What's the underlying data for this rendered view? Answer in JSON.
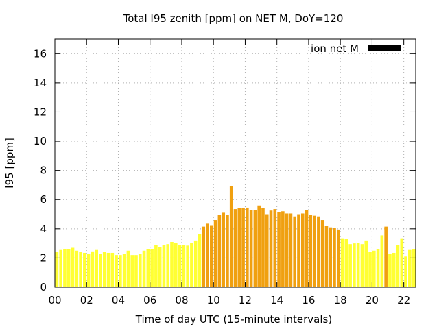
{
  "chart_data": {
    "type": "bar",
    "title": "Total I95 zenith [ppm] on NET M, DoY=120",
    "xlabel": "Time of day UTC (15-minute intervals)",
    "ylabel": "I95 [ppm]",
    "xlim": [
      0,
      22.75
    ],
    "ylim": [
      0,
      17
    ],
    "x_ticks": [
      "00",
      "02",
      "04",
      "06",
      "08",
      "10",
      "12",
      "14",
      "16",
      "18",
      "20",
      "22"
    ],
    "x_tick_values": [
      0,
      2,
      4,
      6,
      8,
      10,
      12,
      14,
      16,
      18,
      20,
      22
    ],
    "y_ticks": [
      0,
      2,
      4,
      6,
      8,
      10,
      12,
      14,
      16
    ],
    "grid": true,
    "legend_position": "top-right",
    "series": [
      {
        "name": "ion net M",
        "legend_color": "#000000",
        "bar_width_hours": 0.2,
        "x": [
          0.125,
          0.375,
          0.625,
          0.875,
          1.125,
          1.375,
          1.625,
          1.875,
          2.125,
          2.375,
          2.625,
          2.875,
          3.125,
          3.375,
          3.625,
          3.875,
          4.125,
          4.375,
          4.625,
          4.875,
          5.125,
          5.375,
          5.625,
          5.875,
          6.125,
          6.375,
          6.625,
          6.875,
          7.125,
          7.375,
          7.625,
          7.875,
          8.125,
          8.375,
          8.625,
          8.875,
          9.125,
          9.375,
          9.625,
          9.875,
          10.125,
          10.375,
          10.625,
          10.875,
          11.125,
          11.375,
          11.625,
          11.875,
          12.125,
          12.375,
          12.625,
          12.875,
          13.125,
          13.375,
          13.625,
          13.875,
          14.125,
          14.375,
          14.625,
          14.875,
          15.125,
          15.375,
          15.625,
          15.875,
          16.125,
          16.375,
          16.625,
          16.875,
          17.125,
          17.375,
          17.625,
          17.875,
          18.125,
          18.375,
          18.625,
          18.875,
          19.125,
          19.375,
          19.625,
          19.875,
          20.125,
          20.375,
          20.625,
          20.875,
          21.125,
          21.375,
          21.625,
          21.875,
          22.125,
          22.375,
          22.625
        ],
        "values": [
          2.4,
          2.55,
          2.6,
          2.6,
          2.7,
          2.5,
          2.4,
          2.35,
          2.3,
          2.45,
          2.55,
          2.3,
          2.4,
          2.35,
          2.35,
          2.2,
          2.2,
          2.3,
          2.5,
          2.2,
          2.2,
          2.3,
          2.5,
          2.6,
          2.6,
          2.9,
          2.75,
          2.9,
          2.95,
          3.1,
          3.05,
          2.9,
          2.9,
          2.85,
          3.05,
          3.2,
          3.65,
          4.15,
          4.35,
          4.25,
          4.6,
          4.95,
          5.1,
          4.95,
          6.95,
          5.35,
          5.4,
          5.4,
          5.45,
          5.3,
          5.3,
          5.6,
          5.4,
          5.0,
          5.25,
          5.35,
          5.15,
          5.2,
          5.05,
          5.05,
          4.85,
          5.0,
          5.05,
          5.3,
          4.95,
          4.9,
          4.85,
          4.6,
          4.2,
          4.1,
          4.05,
          3.95,
          3.35,
          3.3,
          2.95,
          3.0,
          3.05,
          2.95,
          3.2,
          2.4,
          2.5,
          2.6,
          3.55,
          4.15,
          2.3,
          2.35,
          2.9,
          3.35,
          2.1,
          2.55,
          2.6
        ],
        "colors": [
          "#ffff33",
          "#ffff33",
          "#ffff33",
          "#ffff33",
          "#ffff33",
          "#ffff33",
          "#ffff33",
          "#ffff33",
          "#ffff33",
          "#ffff33",
          "#ffff33",
          "#ffff33",
          "#ffff33",
          "#ffff33",
          "#ffff33",
          "#ffff33",
          "#ffff33",
          "#ffff33",
          "#ffff33",
          "#ffff33",
          "#ffff33",
          "#ffff33",
          "#ffff33",
          "#ffff33",
          "#ffff33",
          "#ffff33",
          "#ffff33",
          "#ffff33",
          "#ffff33",
          "#ffff33",
          "#ffff33",
          "#ffff33",
          "#ffff33",
          "#ffff33",
          "#ffff33",
          "#ffff33",
          "#ffff33",
          "#f0a010",
          "#f0a010",
          "#f0a010",
          "#f0a010",
          "#f0a010",
          "#f0a010",
          "#f0a010",
          "#f0a010",
          "#f0a010",
          "#f0a010",
          "#f0a010",
          "#f0a010",
          "#f0a010",
          "#f0a010",
          "#f0a010",
          "#f0a010",
          "#f0a010",
          "#f0a010",
          "#f0a010",
          "#f0a010",
          "#f0a010",
          "#f0a010",
          "#f0a010",
          "#f0a010",
          "#f0a010",
          "#f0a010",
          "#f0a010",
          "#f0a010",
          "#f0a010",
          "#f0a010",
          "#f0a010",
          "#f0a010",
          "#f0a010",
          "#f0a010",
          "#f0a010",
          "#ffff33",
          "#ffff33",
          "#ffff33",
          "#ffff33",
          "#ffff33",
          "#ffff33",
          "#ffff33",
          "#ffff33",
          "#ffff33",
          "#ffff33",
          "#ffff33",
          "#f0a010",
          "#ffff33",
          "#ffff33",
          "#ffff33",
          "#ffff33",
          "#ffff33",
          "#ffff33",
          "#ffff33"
        ]
      }
    ]
  }
}
